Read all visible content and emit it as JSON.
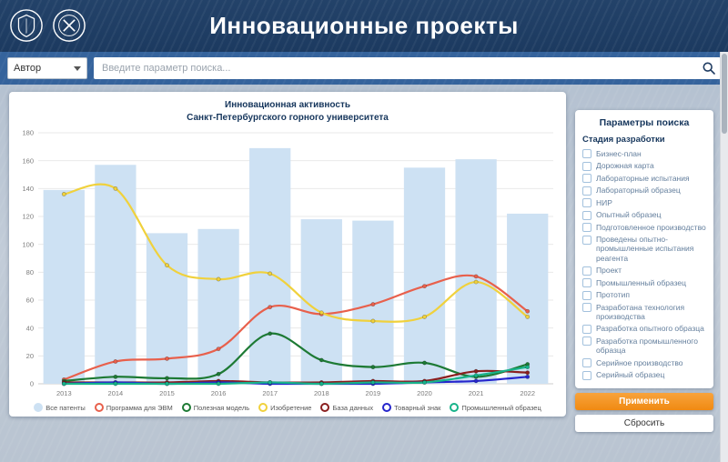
{
  "header": {
    "title": "Инновационные проекты"
  },
  "search": {
    "author_select": "Автор",
    "placeholder": "Введите параметр поиска..."
  },
  "icons": {
    "search-icon": "magnifier",
    "chevron-down-icon": "▾",
    "university-shield-icon": "shield-in-circle",
    "crossed-hammers-icon": "crossed-hammers-in-circle"
  },
  "colors": {
    "header_bg": "#1d3a60",
    "search_row_bg": "#35639c",
    "accent_orange": "#f08a12",
    "panel_text": "#16365c",
    "checkbox_label": "#647f9d"
  },
  "chart_data": {
    "type": "bar",
    "title_line1": "Инновационная активность",
    "title_line2": "Санкт-Петербургского горного университета",
    "categories": [
      "2013",
      "2014",
      "2015",
      "2016",
      "2017",
      "2018",
      "2019",
      "2020",
      "2021",
      "2022"
    ],
    "ylim": [
      0,
      180
    ],
    "yticks": [
      0,
      20,
      40,
      60,
      80,
      100,
      120,
      140,
      160,
      180
    ],
    "grid": true,
    "legend_position": "bottom",
    "bar_series": {
      "name": "Все патенты",
      "color": "#cde1f3",
      "values": [
        139,
        157,
        108,
        111,
        169,
        118,
        117,
        155,
        161,
        122
      ]
    },
    "line_series": [
      {
        "name": "Программа для ЭВМ",
        "color": "#e8604c",
        "values": [
          3,
          16,
          18,
          25,
          55,
          50,
          57,
          70,
          77,
          52
        ]
      },
      {
        "name": "Полезная модель",
        "color": "#1d7a34",
        "values": [
          2,
          5,
          4,
          7,
          36,
          17,
          12,
          15,
          5,
          14
        ]
      },
      {
        "name": "Изобретение",
        "color": "#f0d13c",
        "values": [
          136,
          140,
          85,
          75,
          79,
          51,
          45,
          48,
          73,
          48
        ]
      },
      {
        "name": "База данных",
        "color": "#8a1f1f",
        "values": [
          1,
          1,
          1,
          2,
          1,
          1,
          2,
          2,
          9,
          8
        ]
      },
      {
        "name": "Товарный знак",
        "color": "#2525cc",
        "values": [
          0,
          1,
          0,
          1,
          0,
          0,
          0,
          1,
          2,
          5
        ]
      },
      {
        "name": "Промышленный образец",
        "color": "#17b38a",
        "values": [
          0,
          0,
          0,
          0,
          1,
          0,
          1,
          1,
          6,
          12
        ]
      }
    ]
  },
  "sidebar": {
    "title": "Параметры поиска",
    "group_title": "Стадия разработки",
    "items": [
      {
        "label": "Бизнес-план"
      },
      {
        "label": "Дорожная карта"
      },
      {
        "label": "Лабораторные испытания"
      },
      {
        "label": "Лабораторный образец"
      },
      {
        "label": "НИР"
      },
      {
        "label": "Опытный образец"
      },
      {
        "label": "Подготовленное производство"
      },
      {
        "label": "Проведены опытно-промышленные испытания реагента"
      },
      {
        "label": "Проект"
      },
      {
        "label": "Промышленный образец"
      },
      {
        "label": "Прототип"
      },
      {
        "label": "Разработана технология производства"
      },
      {
        "label": "Разработка опытного образца"
      },
      {
        "label": "Разработка промышленного образца"
      },
      {
        "label": "Серийное производство"
      },
      {
        "label": "Серийный образец"
      }
    ],
    "apply_label": "Применить",
    "reset_label": "Сбросить"
  }
}
